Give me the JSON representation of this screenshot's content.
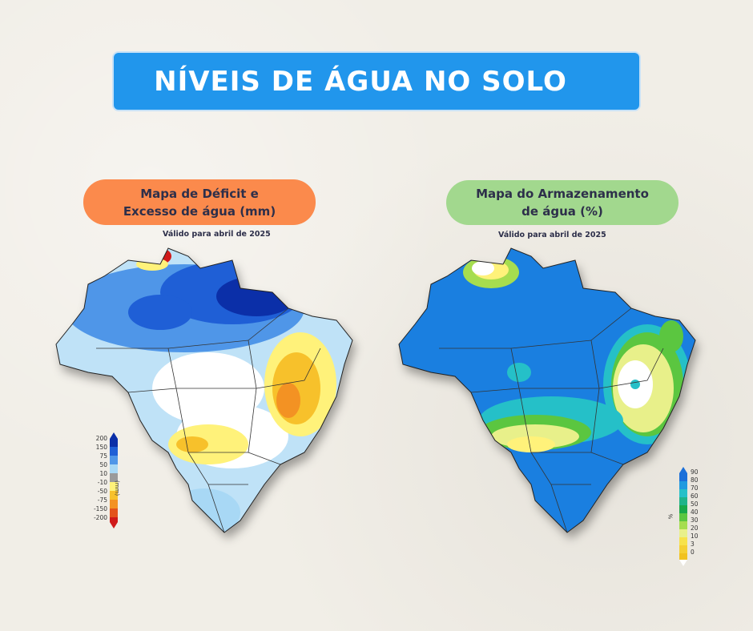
{
  "title": "NÍVEIS DE ÁGUA NO SOLO",
  "left_panel": {
    "heading_line1": "Mapa de Déficit e",
    "heading_line2": "Excesso de água (mm)",
    "valid_text": "Válido para abril de 2025",
    "legend_labels": [
      "200",
      "150",
      "75",
      "50",
      "10",
      "-10",
      "-50",
      "-75",
      "-150",
      "-200"
    ],
    "legend_colors": [
      "#0b2fa8",
      "#1f5fd6",
      "#4f96e8",
      "#a8d8f5",
      "#9a9a9a",
      "#fff27a",
      "#f7c12b",
      "#f39223",
      "#e3531c",
      "#d01a1a"
    ],
    "unit": "(mm)"
  },
  "right_panel": {
    "heading_line1": "Mapa do Armazenamento",
    "heading_line2": "de água (%)",
    "valid_text": "Válido para abril de 2025",
    "legend_labels": [
      "90",
      "80",
      "70",
      "60",
      "50",
      "40",
      "30",
      "20",
      "10",
      "3",
      "0"
    ],
    "legend_colors": [
      "#1a6fd9",
      "#1f9ae0",
      "#25c0c8",
      "#1eb48a",
      "#18a84a",
      "#5bc640",
      "#a6dd4f",
      "#e8f08a",
      "#f7e24a",
      "#f5d033",
      "#f1c21f"
    ],
    "unit": "%"
  }
}
